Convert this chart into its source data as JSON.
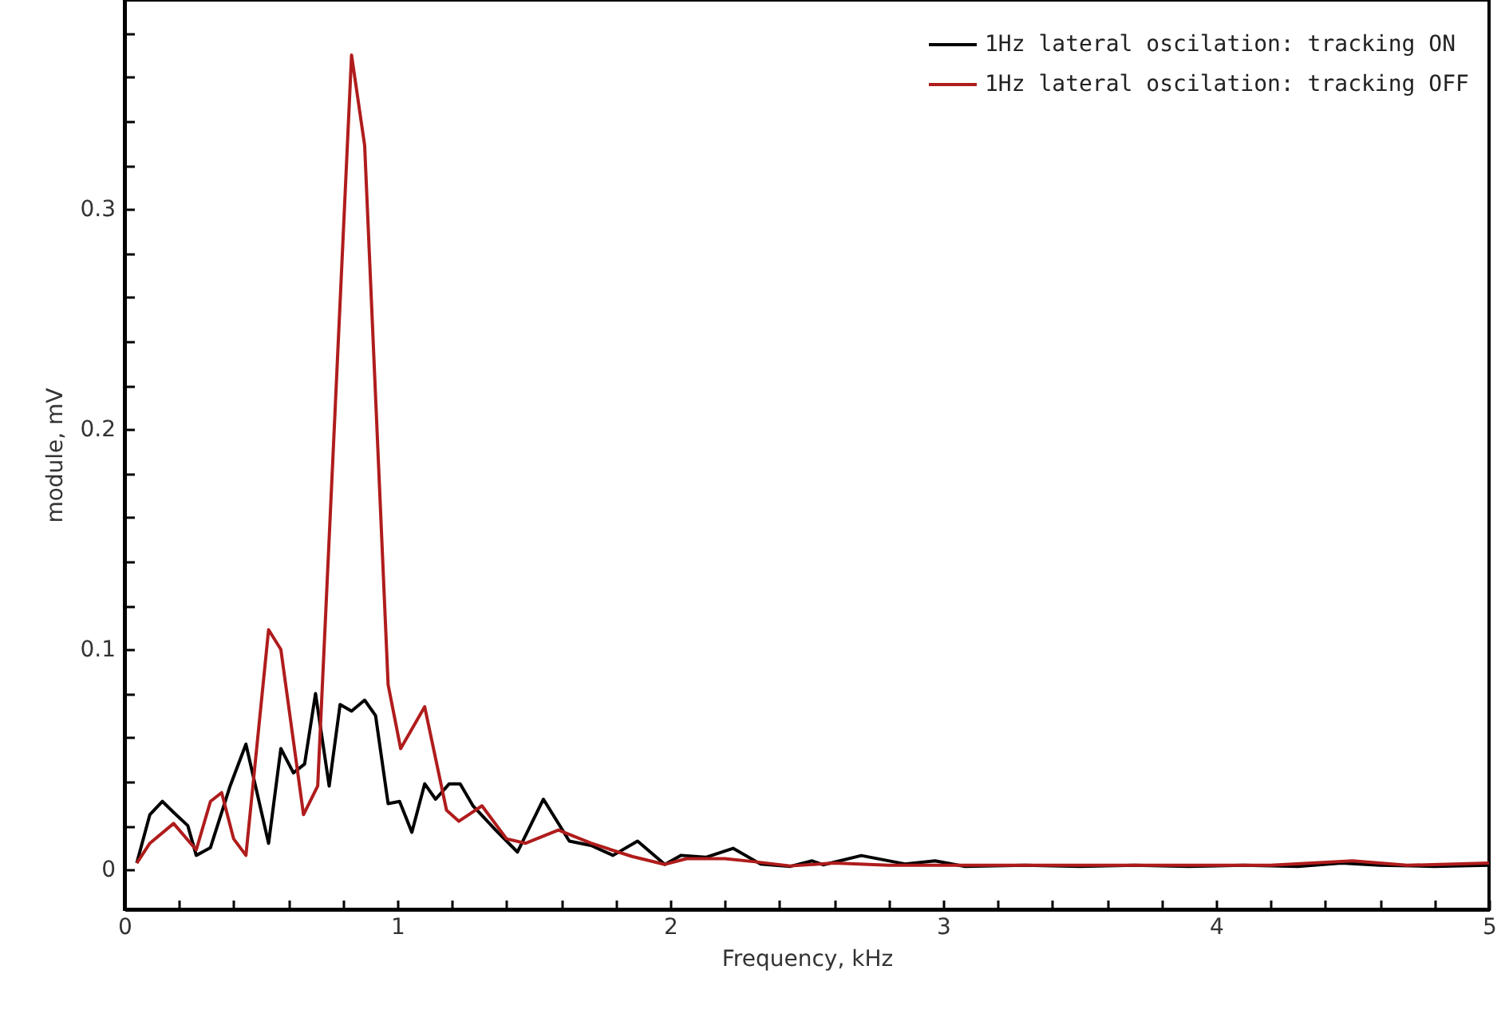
{
  "chart_data": {
    "type": "line",
    "xlabel": "Frequency, kHz",
    "ylabel": "module, mV",
    "legend": "top right",
    "grid": false,
    "xlim": [
      0,
      5
    ],
    "ylim": [
      -0.018,
      0.395
    ],
    "xticks": [
      0,
      {
        "value": 0.2,
        "label": null
      },
      {
        "value": 0.4,
        "label": null
      },
      {
        "value": 0.6,
        "label": null
      },
      {
        "value": 0.8,
        "label": null
      },
      1,
      {
        "value": 1.2,
        "label": null
      },
      {
        "value": 1.4,
        "label": null
      },
      {
        "value": 1.6,
        "label": null
      },
      {
        "value": 1.8,
        "label": null
      },
      2,
      {
        "value": 2.2,
        "label": null
      },
      {
        "value": 2.4,
        "label": null
      },
      {
        "value": 2.6,
        "label": null
      },
      {
        "value": 2.8,
        "label": null
      },
      3,
      {
        "value": 3.2,
        "label": null
      },
      {
        "value": 3.4,
        "label": null
      },
      {
        "value": 3.6,
        "label": null
      },
      {
        "value": 3.8,
        "label": null
      },
      4,
      {
        "value": 4.2,
        "label": null
      },
      {
        "value": 4.4,
        "label": null
      },
      {
        "value": 4.6,
        "label": null
      },
      {
        "value": 4.8,
        "label": null
      },
      5
    ],
    "yticks": [
      0,
      {
        "value": 0.02,
        "label": null
      },
      {
        "value": 0.04,
        "label": null
      },
      {
        "value": 0.06,
        "label": null
      },
      {
        "value": 0.08,
        "label": null
      },
      0.1,
      {
        "value": 0.12,
        "label": null
      },
      {
        "value": 0.14,
        "label": null
      },
      {
        "value": 0.16,
        "label": null
      },
      {
        "value": 0.18,
        "label": null
      },
      0.2,
      {
        "value": 0.22,
        "label": null
      },
      {
        "value": 0.24,
        "label": null
      },
      {
        "value": 0.26,
        "label": null
      },
      {
        "value": 0.28,
        "label": null
      },
      0.3,
      {
        "value": 0.32,
        "label": null
      },
      {
        "value": 0.34,
        "label": null
      },
      {
        "value": 0.36,
        "label": null
      },
      {
        "value": 0.38,
        "label": null
      }
    ],
    "series": [
      {
        "name": "1Hz lateral oscilation: tracking ON",
        "color": "#000000",
        "x": [
          0.045,
          0.093,
          0.139,
          0.18,
          0.232,
          0.263,
          0.315,
          0.387,
          0.445,
          0.528,
          0.573,
          0.619,
          0.66,
          0.7,
          0.75,
          0.79,
          0.832,
          0.88,
          0.92,
          0.966,
          1.008,
          1.053,
          1.1,
          1.14,
          1.19,
          1.23,
          1.277,
          1.36,
          1.44,
          1.535,
          1.63,
          1.71,
          1.79,
          1.88,
          1.98,
          2.04,
          2.13,
          2.23,
          2.33,
          2.44,
          2.52,
          2.56,
          2.7,
          2.86,
          2.97,
          3.08,
          3.3,
          3.5,
          3.7,
          3.9,
          4.1,
          4.3,
          4.46,
          4.6,
          4.8,
          5.0
        ],
        "values": [
          0.003,
          0.025,
          0.031,
          0.026,
          0.02,
          0.0065,
          0.01,
          0.038,
          0.057,
          0.012,
          0.055,
          0.044,
          0.048,
          0.08,
          0.038,
          0.075,
          0.072,
          0.077,
          0.07,
          0.03,
          0.031,
          0.017,
          0.039,
          0.032,
          0.039,
          0.039,
          0.029,
          0.018,
          0.008,
          0.032,
          0.013,
          0.011,
          0.0065,
          0.013,
          0.0024,
          0.0065,
          0.0056,
          0.0097,
          0.0026,
          0.0015,
          0.004,
          0.0022,
          0.0064,
          0.0026,
          0.004,
          0.0015,
          0.002,
          0.0015,
          0.002,
          0.0015,
          0.002,
          0.0015,
          0.003,
          0.002,
          0.0015,
          0.002
        ]
      },
      {
        "name": "1Hz lateral oscilation: tracking OFF",
        "color": "#b01c1c",
        "x": [
          0.045,
          0.093,
          0.18,
          0.263,
          0.315,
          0.356,
          0.4,
          0.445,
          0.528,
          0.573,
          0.656,
          0.708,
          0.832,
          0.88,
          0.966,
          1.012,
          1.1,
          1.18,
          1.225,
          1.31,
          1.4,
          1.47,
          1.59,
          1.71,
          1.86,
          1.98,
          2.06,
          2.2,
          2.31,
          2.44,
          2.6,
          2.8,
          3.0,
          3.3,
          3.6,
          3.9,
          4.2,
          4.5,
          4.7,
          5.0
        ],
        "values": [
          0.003,
          0.012,
          0.021,
          0.009,
          0.031,
          0.035,
          0.014,
          0.0065,
          0.109,
          0.1,
          0.025,
          0.038,
          0.37,
          0.329,
          0.084,
          0.055,
          0.074,
          0.027,
          0.022,
          0.029,
          0.014,
          0.012,
          0.018,
          0.012,
          0.006,
          0.0024,
          0.005,
          0.005,
          0.0036,
          0.0017,
          0.003,
          0.002,
          0.002,
          0.002,
          0.002,
          0.002,
          0.002,
          0.004,
          0.002,
          0.003
        ]
      }
    ]
  }
}
